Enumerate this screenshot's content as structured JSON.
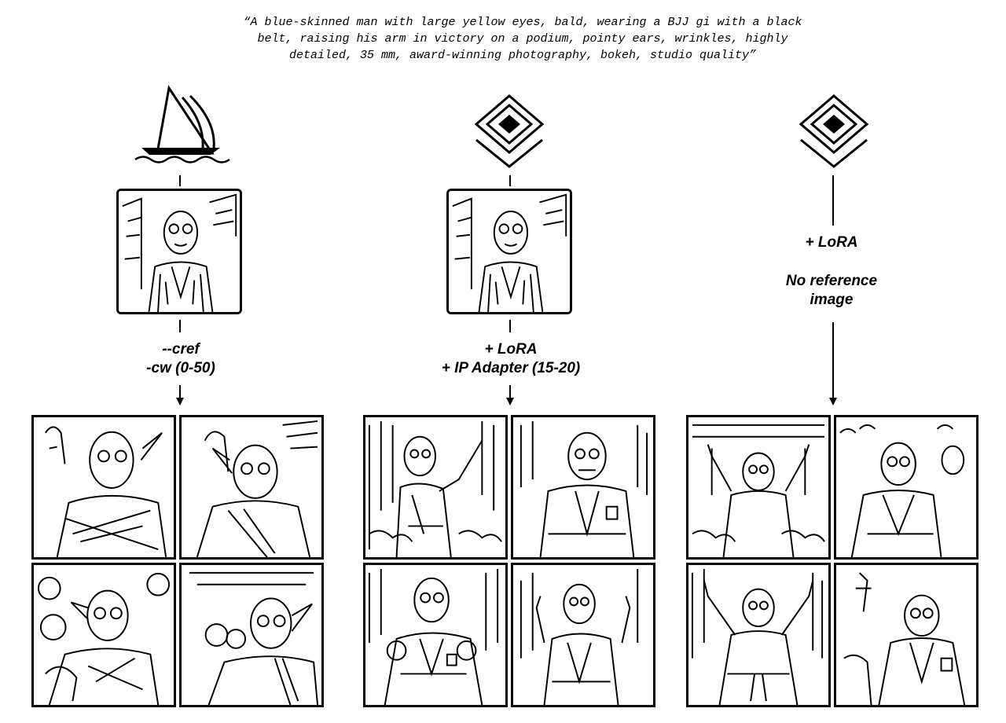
{
  "prompt": "“A blue-skinned man with large yellow eyes, bald, wearing a BJJ gi with a black\nbelt, raising his arm in victory on a podium, pointy ears, wrinkles, highly\ndetailed, 35 mm, award-winning photography, bokeh, studio quality”",
  "columns": [
    {
      "logo": "sailboat-logo-icon",
      "reference_image": true,
      "label_lines": [
        "--cref",
        "-cw (0-50)"
      ],
      "grid_images": 4
    },
    {
      "logo": "layered-diamond-logo-icon",
      "reference_image": true,
      "label_lines": [
        "+ LoRA",
        "+ IP Adapter (15-20)"
      ],
      "grid_images": 4
    },
    {
      "logo": "layered-diamond-logo-icon",
      "reference_image": false,
      "label_lines": [
        "+ LoRA"
      ],
      "note_lines": [
        "No reference",
        "image"
      ],
      "grid_images": 4
    }
  ]
}
